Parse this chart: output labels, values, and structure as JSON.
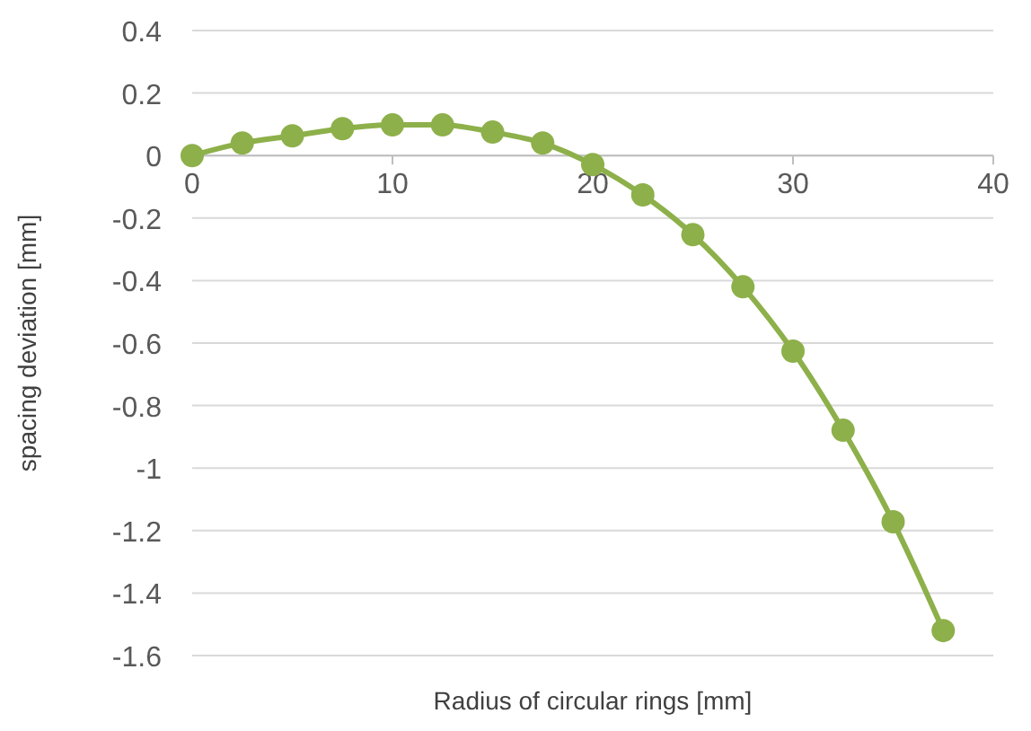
{
  "chart_data": {
    "type": "line",
    "xlabel": "Radius of circular rings [mm]",
    "ylabel": "spacing deviation [mm]",
    "x": [
      0,
      2.5,
      5,
      7.5,
      10,
      12.5,
      15,
      17.5,
      20,
      22.5,
      25,
      27.5,
      30,
      32.5,
      35,
      37.5
    ],
    "series": [
      {
        "color": "#8db04a",
        "values": [
          0,
          0.04,
          0.063,
          0.086,
          0.098,
          0.098,
          0.075,
          0.04,
          -0.029,
          -0.126,
          -0.253,
          -0.42,
          -0.626,
          -0.879,
          -1.172,
          -1.52
        ]
      }
    ],
    "xlim": [
      0,
      40
    ],
    "xticks": [
      0,
      10,
      20,
      30,
      40
    ],
    "ylim": [
      -1.6,
      0.4
    ],
    "yticks": [
      0.4,
      0.2,
      0,
      -0.2,
      -0.4,
      -0.6,
      -0.8,
      -1,
      -1.2,
      -1.4,
      -1.6
    ],
    "grid": "y",
    "marker": "circle",
    "line_style": "solid"
  }
}
